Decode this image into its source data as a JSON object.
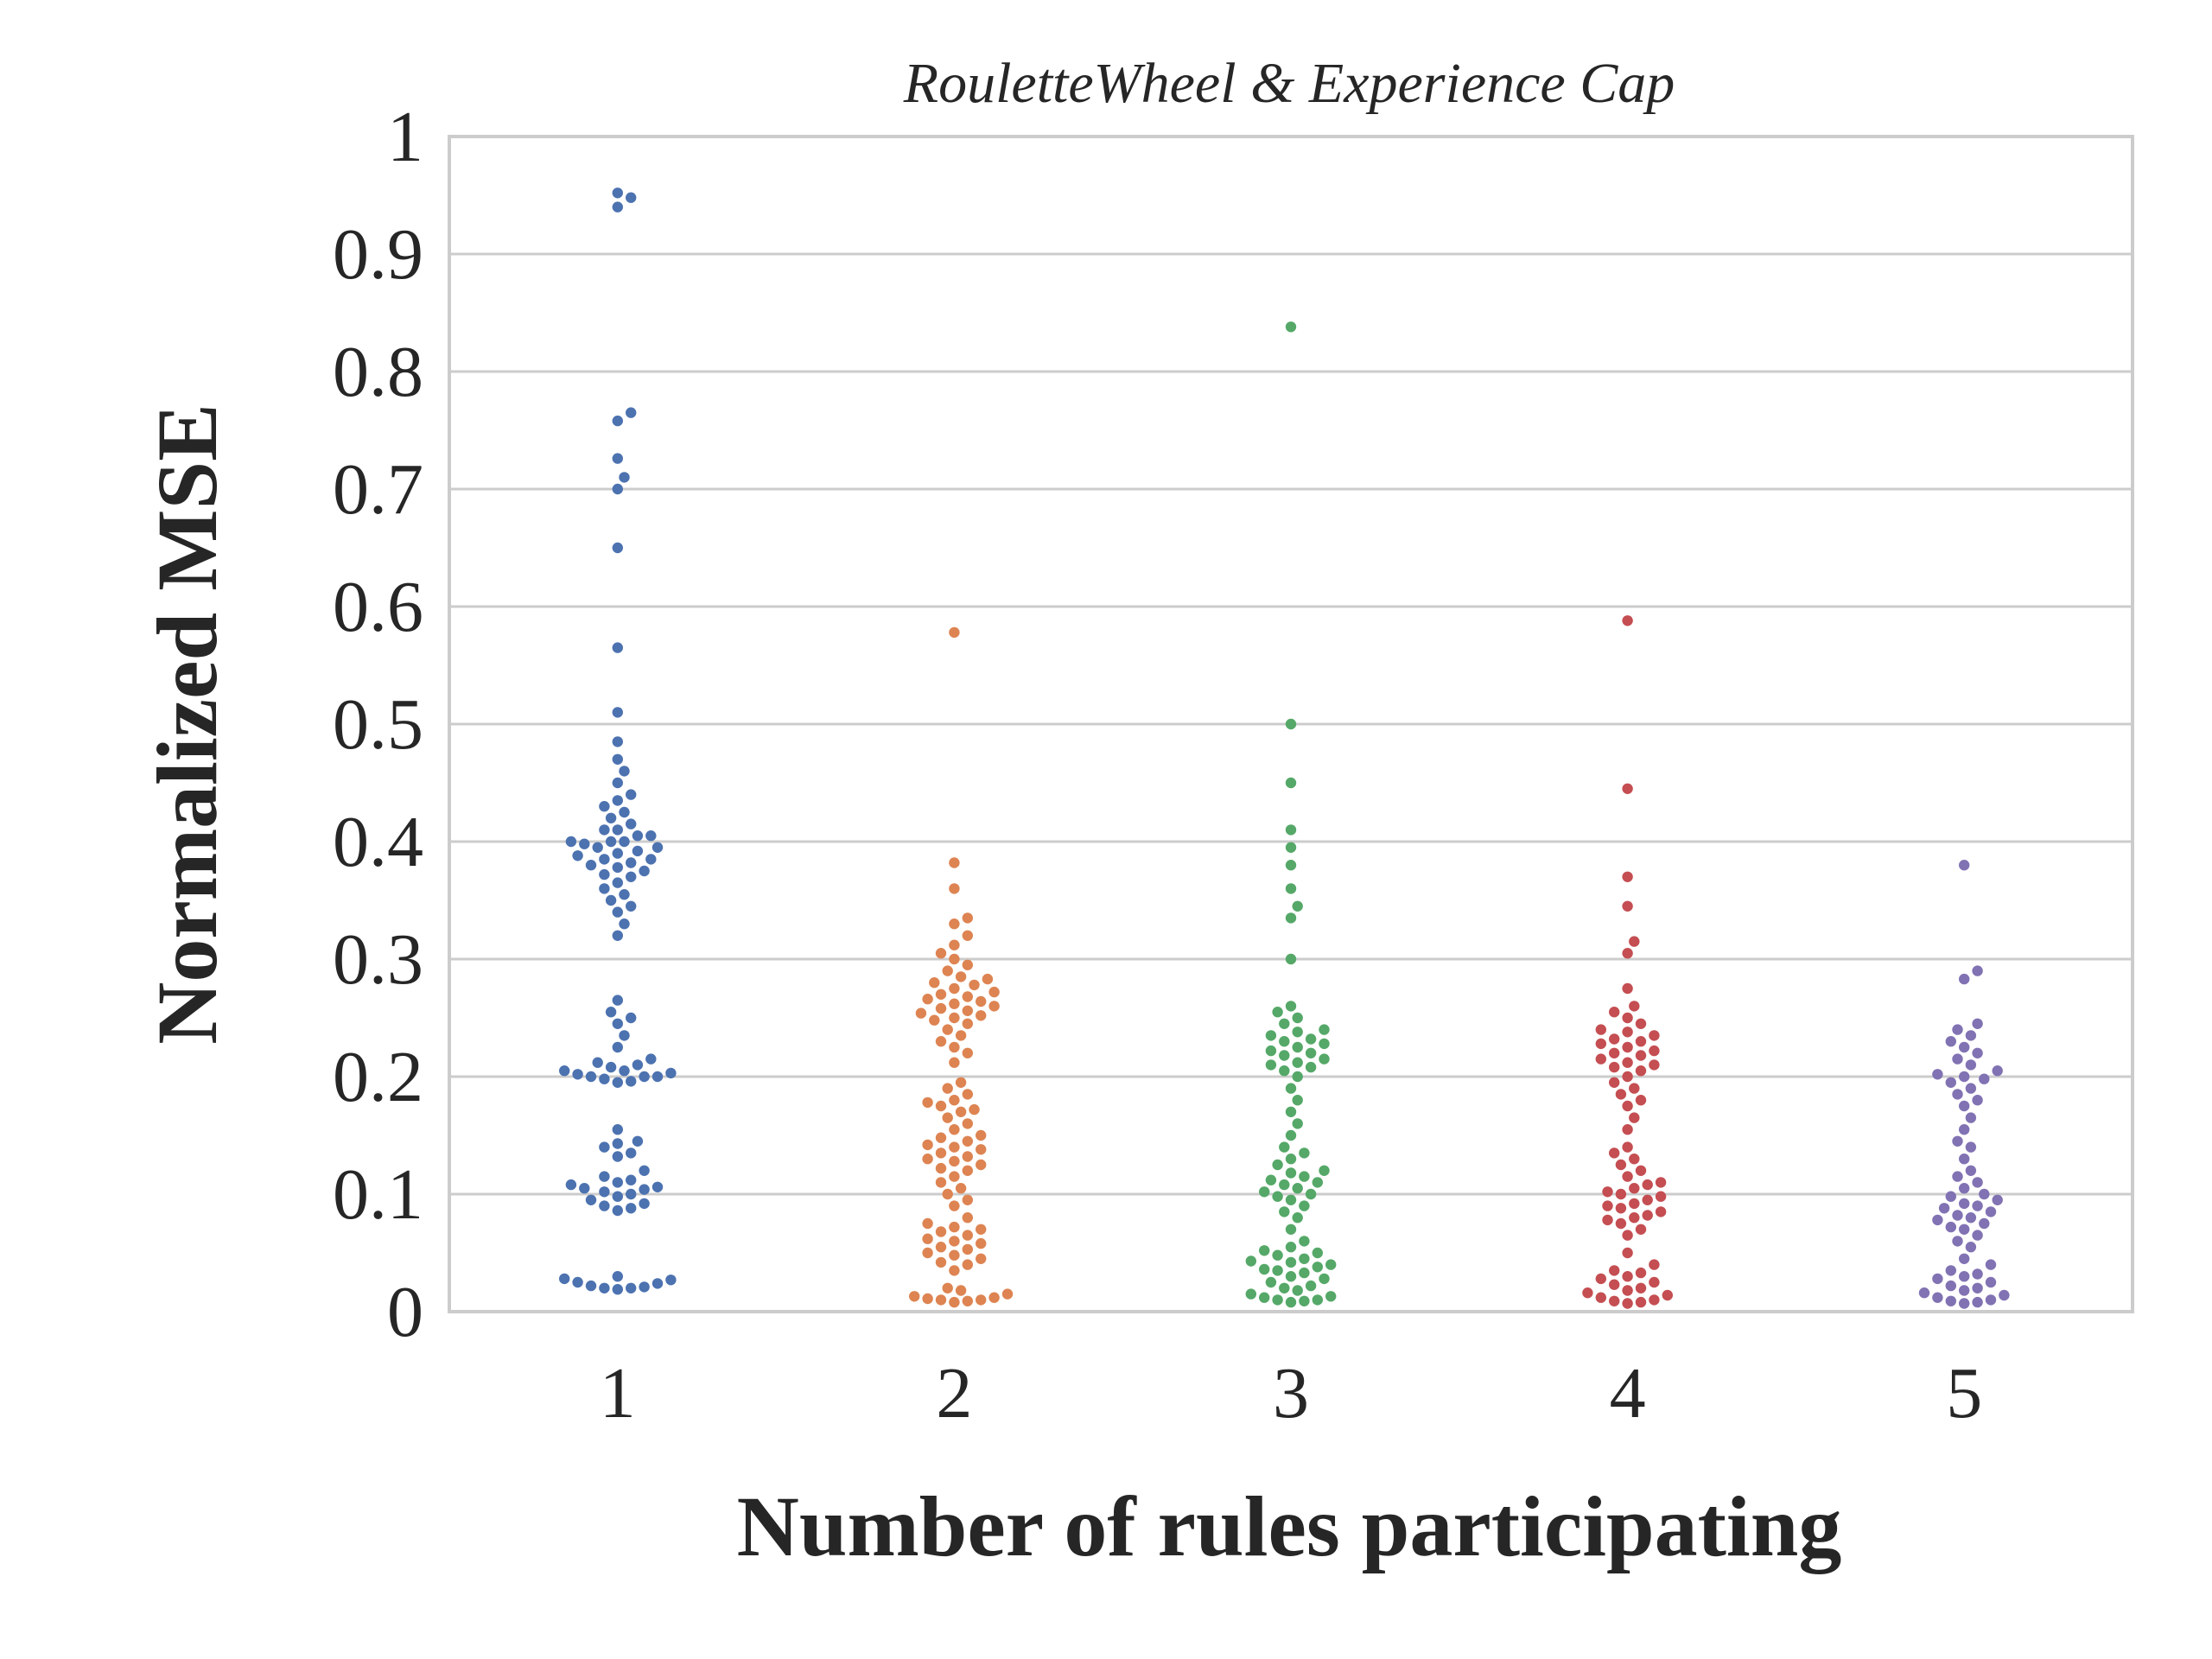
{
  "chart_data": {
    "type": "scatter",
    "subtype": "swarm",
    "title": "RouletteWheel & Experience Cap",
    "xlabel": "Number of rules participating",
    "ylabel": "Normalized MSE",
    "categories": [
      "1",
      "2",
      "3",
      "4",
      "5"
    ],
    "ylim": [
      0,
      1
    ],
    "yticks": [
      "0",
      "0.1",
      "0.2",
      "0.3",
      "0.4",
      "0.5",
      "0.6",
      "0.7",
      "0.8",
      "0.9",
      "1"
    ],
    "grid": "horizontal",
    "colors": [
      "#4c72b0",
      "#dd8452",
      "#55a868",
      "#c44e52",
      "#8172b3"
    ],
    "background": "#ffffff",
    "frame_color": "#cccccc",
    "series": [
      {
        "category": "1",
        "values": [
          0.952,
          0.948,
          0.94,
          0.765,
          0.758,
          0.726,
          0.71,
          0.7,
          0.65,
          0.565,
          0.51,
          0.485,
          0.47,
          0.46,
          0.45,
          0.44,
          0.435,
          0.43,
          0.425,
          0.42,
          0.415,
          0.41,
          0.41,
          0.405,
          0.405,
          0.4,
          0.4,
          0.4,
          0.398,
          0.395,
          0.395,
          0.392,
          0.39,
          0.388,
          0.385,
          0.385,
          0.382,
          0.38,
          0.378,
          0.375,
          0.372,
          0.37,
          0.365,
          0.36,
          0.355,
          0.35,
          0.345,
          0.34,
          0.33,
          0.32,
          0.265,
          0.255,
          0.25,
          0.245,
          0.235,
          0.225,
          0.215,
          0.212,
          0.21,
          0.208,
          0.205,
          0.205,
          0.203,
          0.202,
          0.2,
          0.2,
          0.2,
          0.198,
          0.196,
          0.195,
          0.155,
          0.145,
          0.143,
          0.14,
          0.135,
          0.132,
          0.12,
          0.115,
          0.112,
          0.11,
          0.108,
          0.106,
          0.105,
          0.104,
          0.102,
          0.1,
          0.098,
          0.095,
          0.092,
          0.09,
          0.088,
          0.086,
          0.03,
          0.028,
          0.027,
          0.025,
          0.024,
          0.022,
          0.021,
          0.02,
          0.02,
          0.019
        ]
      },
      {
        "category": "2",
        "values": [
          0.578,
          0.382,
          0.36,
          0.335,
          0.33,
          0.32,
          0.312,
          0.305,
          0.3,
          0.295,
          0.29,
          0.285,
          0.283,
          0.28,
          0.278,
          0.275,
          0.272,
          0.27,
          0.268,
          0.266,
          0.264,
          0.262,
          0.26,
          0.258,
          0.256,
          0.254,
          0.252,
          0.25,
          0.248,
          0.245,
          0.24,
          0.235,
          0.23,
          0.225,
          0.22,
          0.212,
          0.195,
          0.19,
          0.185,
          0.18,
          0.178,
          0.175,
          0.172,
          0.17,
          0.165,
          0.16,
          0.155,
          0.15,
          0.148,
          0.145,
          0.142,
          0.14,
          0.138,
          0.135,
          0.132,
          0.13,
          0.128,
          0.125,
          0.122,
          0.12,
          0.115,
          0.11,
          0.105,
          0.1,
          0.095,
          0.09,
          0.08,
          0.075,
          0.072,
          0.07,
          0.068,
          0.065,
          0.062,
          0.06,
          0.058,
          0.055,
          0.053,
          0.05,
          0.048,
          0.045,
          0.042,
          0.04,
          0.035,
          0.02,
          0.018,
          0.015,
          0.013,
          0.012,
          0.011,
          0.01,
          0.01,
          0.009,
          0.008
        ]
      },
      {
        "category": "3",
        "values": [
          0.838,
          0.5,
          0.45,
          0.41,
          0.395,
          0.38,
          0.36,
          0.345,
          0.335,
          0.3,
          0.26,
          0.255,
          0.25,
          0.245,
          0.24,
          0.238,
          0.235,
          0.232,
          0.23,
          0.228,
          0.225,
          0.222,
          0.22,
          0.218,
          0.215,
          0.212,
          0.21,
          0.208,
          0.205,
          0.2,
          0.19,
          0.18,
          0.17,
          0.16,
          0.15,
          0.14,
          0.135,
          0.13,
          0.125,
          0.12,
          0.118,
          0.115,
          0.112,
          0.11,
          0.108,
          0.105,
          0.102,
          0.1,
          0.098,
          0.095,
          0.09,
          0.085,
          0.08,
          0.07,
          0.06,
          0.055,
          0.052,
          0.05,
          0.048,
          0.045,
          0.043,
          0.042,
          0.04,
          0.038,
          0.036,
          0.035,
          0.033,
          0.03,
          0.028,
          0.025,
          0.022,
          0.02,
          0.018,
          0.015,
          0.013,
          0.012,
          0.01,
          0.01,
          0.009,
          0.008
        ]
      },
      {
        "category": "4",
        "values": [
          0.588,
          0.445,
          0.37,
          0.345,
          0.315,
          0.305,
          0.275,
          0.26,
          0.255,
          0.25,
          0.245,
          0.24,
          0.238,
          0.235,
          0.232,
          0.23,
          0.228,
          0.225,
          0.222,
          0.22,
          0.218,
          0.215,
          0.212,
          0.21,
          0.208,
          0.205,
          0.2,
          0.195,
          0.19,
          0.185,
          0.18,
          0.175,
          0.165,
          0.155,
          0.14,
          0.135,
          0.13,
          0.125,
          0.12,
          0.115,
          0.11,
          0.108,
          0.105,
          0.102,
          0.1,
          0.098,
          0.095,
          0.092,
          0.09,
          0.088,
          0.085,
          0.082,
          0.08,
          0.078,
          0.075,
          0.07,
          0.065,
          0.05,
          0.04,
          0.035,
          0.033,
          0.03,
          0.028,
          0.025,
          0.023,
          0.02,
          0.018,
          0.016,
          0.014,
          0.012,
          0.01,
          0.009,
          0.008,
          0.007
        ]
      },
      {
        "category": "5",
        "values": [
          0.38,
          0.29,
          0.283,
          0.245,
          0.24,
          0.235,
          0.23,
          0.225,
          0.22,
          0.215,
          0.21,
          0.205,
          0.202,
          0.2,
          0.198,
          0.195,
          0.19,
          0.185,
          0.18,
          0.175,
          0.165,
          0.155,
          0.145,
          0.14,
          0.13,
          0.12,
          0.115,
          0.11,
          0.105,
          0.1,
          0.098,
          0.095,
          0.092,
          0.09,
          0.088,
          0.085,
          0.082,
          0.08,
          0.078,
          0.075,
          0.072,
          0.07,
          0.065,
          0.06,
          0.055,
          0.045,
          0.04,
          0.035,
          0.032,
          0.03,
          0.028,
          0.025,
          0.022,
          0.02,
          0.018,
          0.016,
          0.014,
          0.012,
          0.01,
          0.009,
          0.008,
          0.007
        ]
      }
    ]
  }
}
